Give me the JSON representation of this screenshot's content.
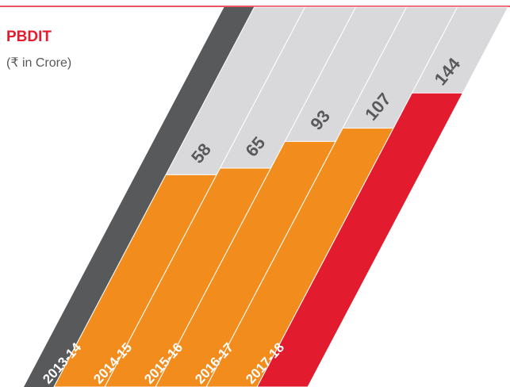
{
  "chart_data": {
    "type": "bar",
    "title": "PBDIT",
    "subtitle": "(₹ in Crore)",
    "categories": [
      "2013-14",
      "2014-15",
      "2015-16",
      "2016-17",
      "2017-18"
    ],
    "values": [
      58,
      65,
      93,
      107,
      144
    ],
    "colors": [
      "#f28c1c",
      "#f28c1c",
      "#f28c1c",
      "#f28c1c",
      "#e31b2f"
    ]
  }
}
